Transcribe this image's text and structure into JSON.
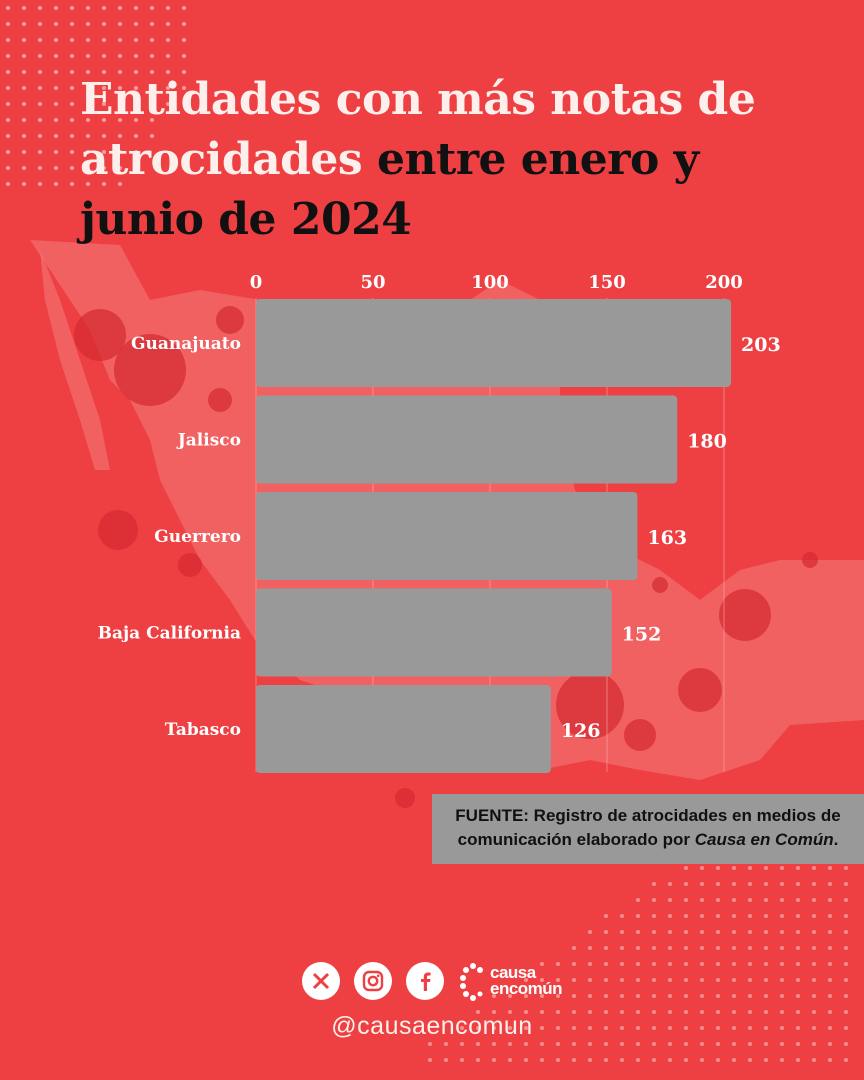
{
  "title": {
    "part1": "Entidades con más notas de",
    "part2a": "atrocidades",
    "part2b": " entre enero  y",
    "part3": "junio de 2024"
  },
  "colors": {
    "background": "#ee4043",
    "bar": "#999999",
    "title_light": "#fdf0ec",
    "title_dark": "#111111",
    "map": "#f57b7b",
    "splatter": "#d42a30"
  },
  "chart_data": {
    "type": "bar",
    "orientation": "horizontal",
    "categories": [
      "Guanajuato",
      "Jalisco",
      "Guerrero",
      "Baja California",
      "Tabasco"
    ],
    "values": [
      203,
      180,
      163,
      152,
      126
    ],
    "data_labels": [
      "203",
      "180",
      "163",
      "152",
      "126"
    ],
    "xlim": [
      0,
      200
    ],
    "xticks": [
      0,
      50,
      100,
      150,
      200
    ],
    "xtick_labels": [
      "0",
      "50",
      "100",
      "150",
      "200"
    ],
    "axis_position": "top",
    "grid": true
  },
  "source": {
    "prefix": "FUENTE: Registro de atrocidades en medios de comunicación elaborado por ",
    "org": "Causa en Común",
    "suffix": "."
  },
  "footer": {
    "icons": [
      "x-icon",
      "instagram-icon",
      "facebook-icon"
    ],
    "logo_line1": "causa",
    "logo_line2": "encomún",
    "handle": "@causaencomun"
  }
}
